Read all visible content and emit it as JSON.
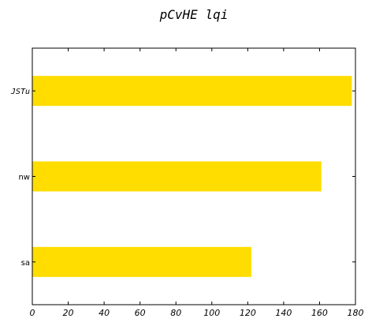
{
  "chart_data": {
    "type": "bar",
    "orientation": "horizontal",
    "title": "pCvHE   lqi",
    "xlabel": "",
    "ylabel": "",
    "categories": [
      "JSTu",
      "nw",
      "sa"
    ],
    "values": [
      178,
      161,
      122
    ],
    "xlim": [
      0,
      180
    ],
    "xticks": [
      0,
      20,
      40,
      60,
      80,
      100,
      120,
      140,
      160,
      180
    ],
    "grid": false,
    "legend": "none",
    "bar_color": "#FFDD00"
  }
}
